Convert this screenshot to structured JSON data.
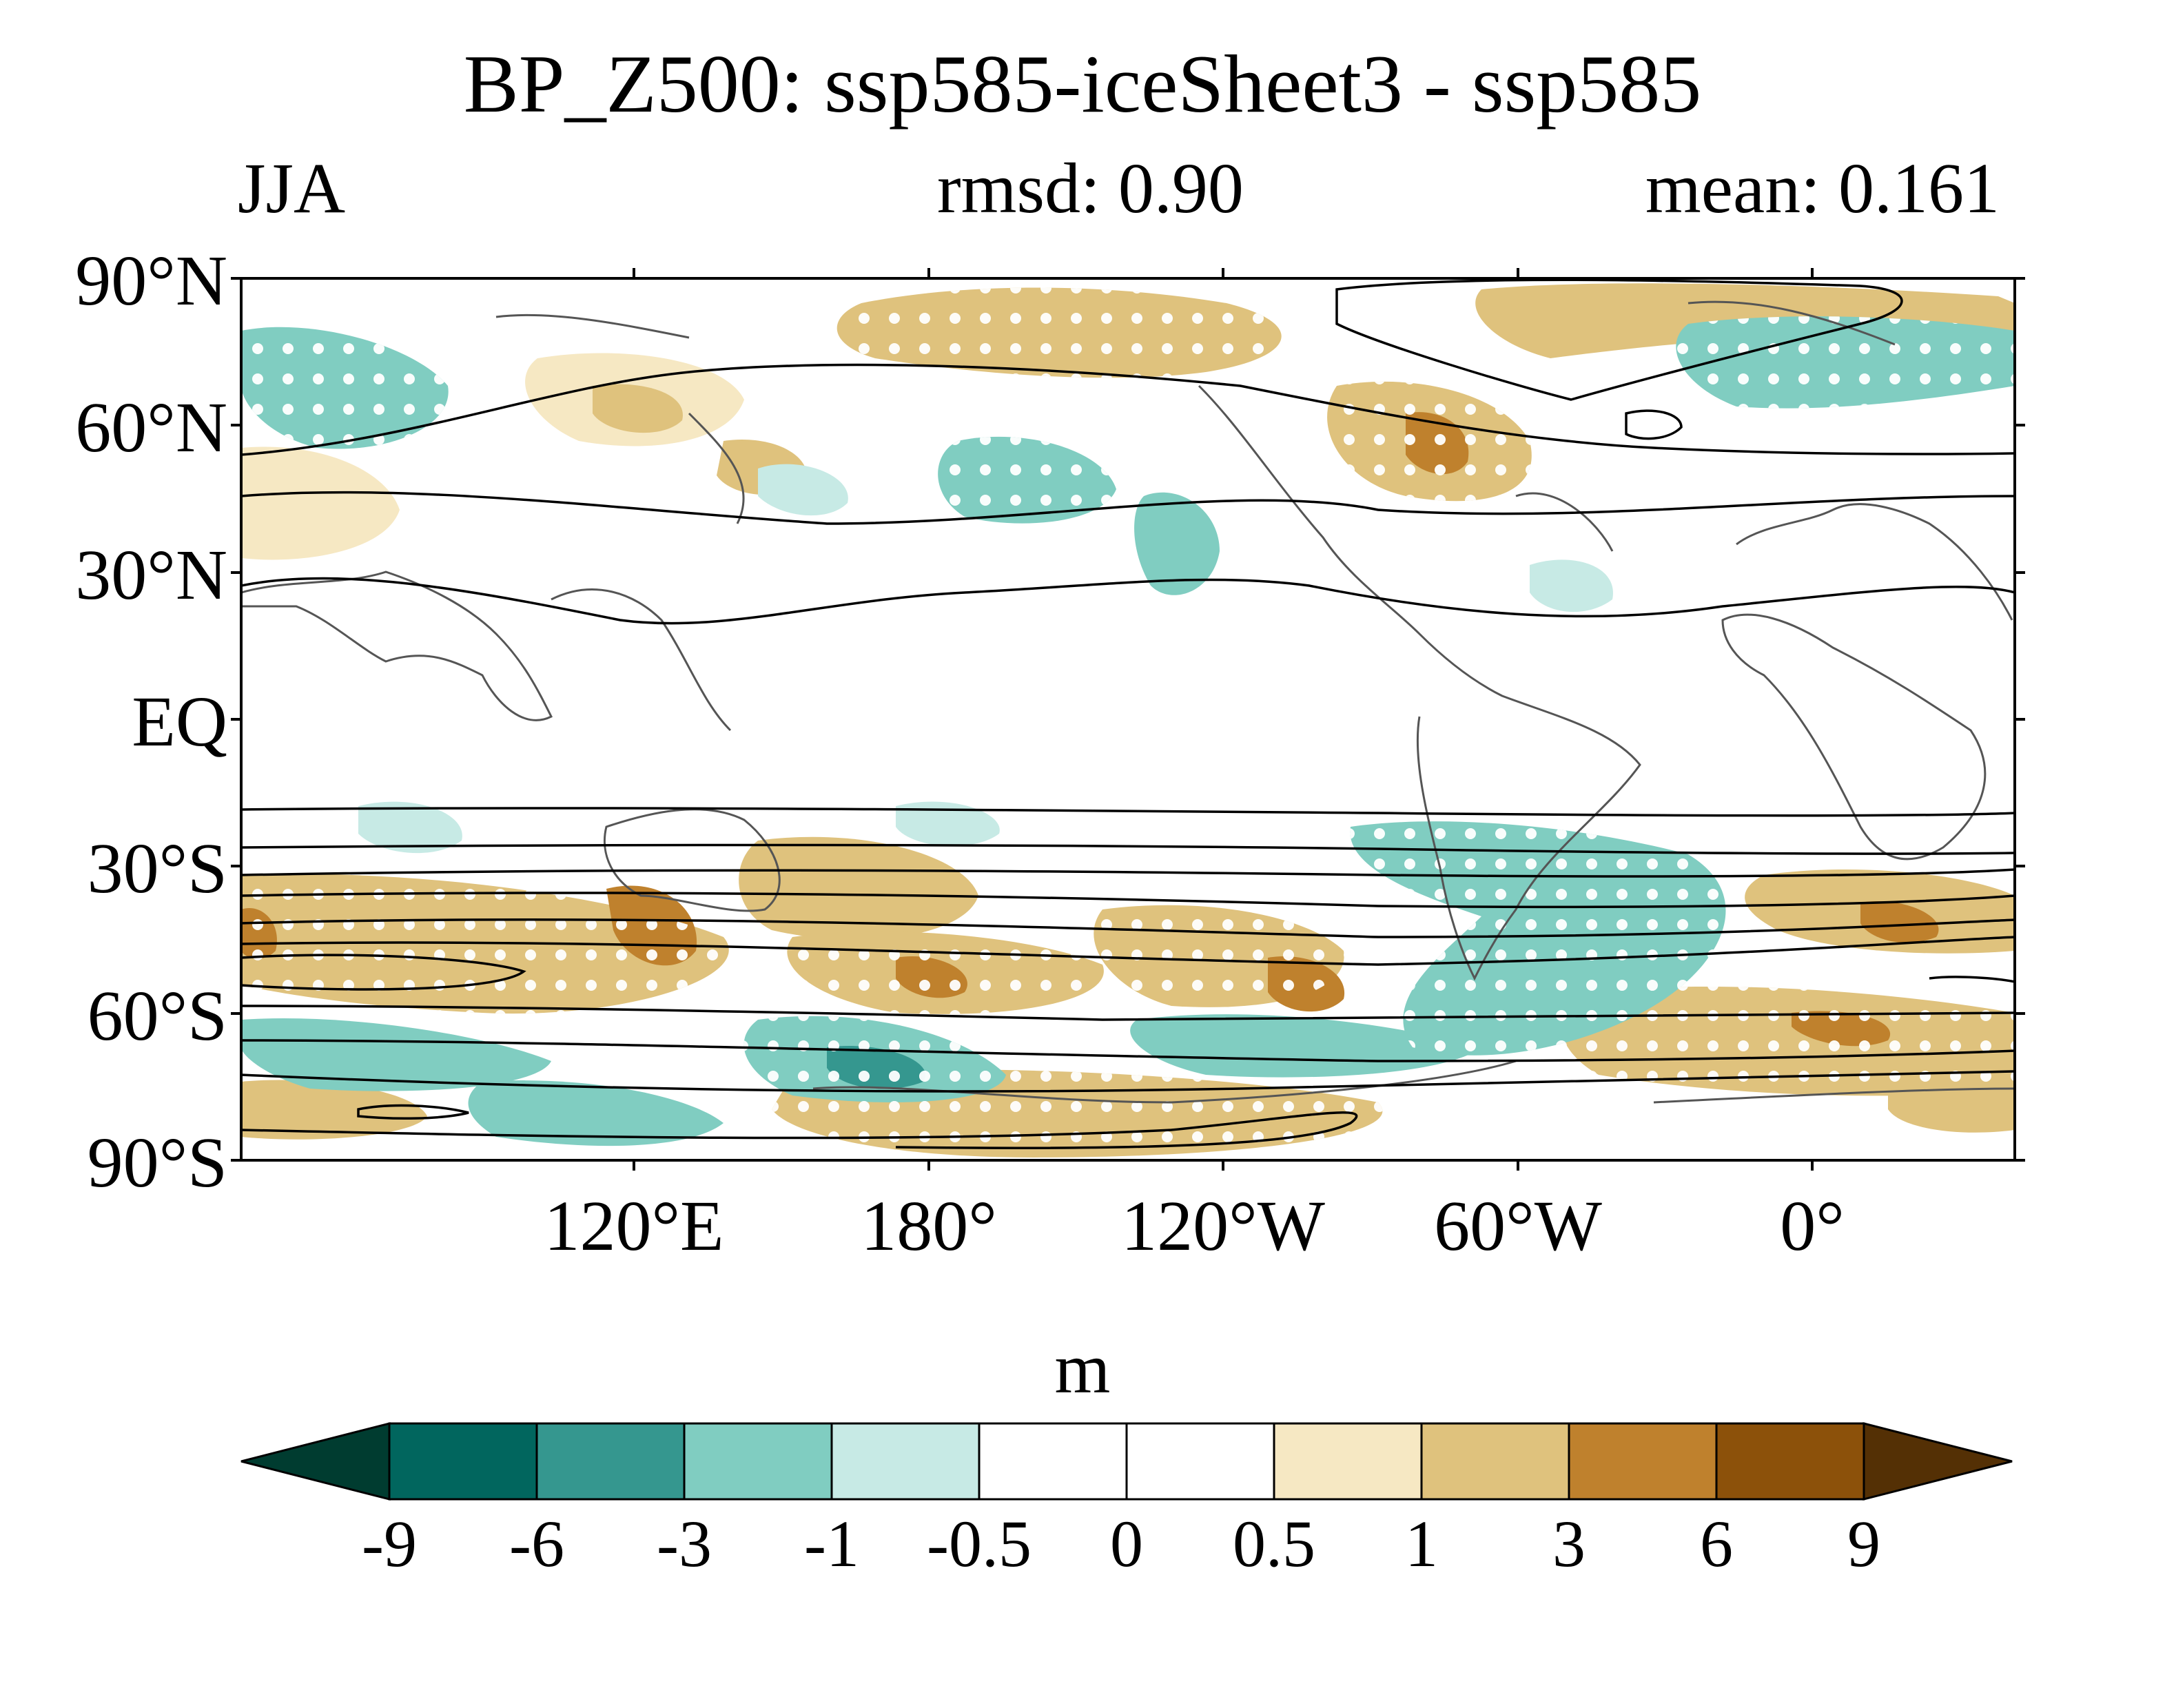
{
  "header": {
    "title": "BP_Z500: ssp585-iceSheet3 - ssp585",
    "season": "JJA",
    "rmsd": "rmsd: 0.90",
    "mean": "mean: 0.161"
  },
  "map": {
    "projection": "cylindrical-equidistant",
    "lat_labels": [
      "90°N",
      "60°N",
      "30°N",
      "EQ",
      "30°S",
      "60°S",
      "90°S"
    ],
    "lon_labels": [
      "120°E",
      "180°",
      "120°W",
      "60°W",
      "0°"
    ],
    "layers": [
      "coastlines",
      "shaded-anomaly",
      "significance-stippling",
      "black-contours"
    ]
  },
  "colorbar": {
    "units": "m",
    "levels": [
      "-9",
      "-6",
      "-3",
      "-1",
      "-0.5",
      "0",
      "0.5",
      "1",
      "3",
      "6",
      "9"
    ],
    "colors": [
      "#003c30",
      "#01665e",
      "#35978f",
      "#80cdc1",
      "#c7eae5",
      "#ffffff",
      "#ffffff",
      "#f6e8c3",
      "#dfc27d",
      "#bf812d",
      "#8c510a",
      "#543005"
    ]
  }
}
